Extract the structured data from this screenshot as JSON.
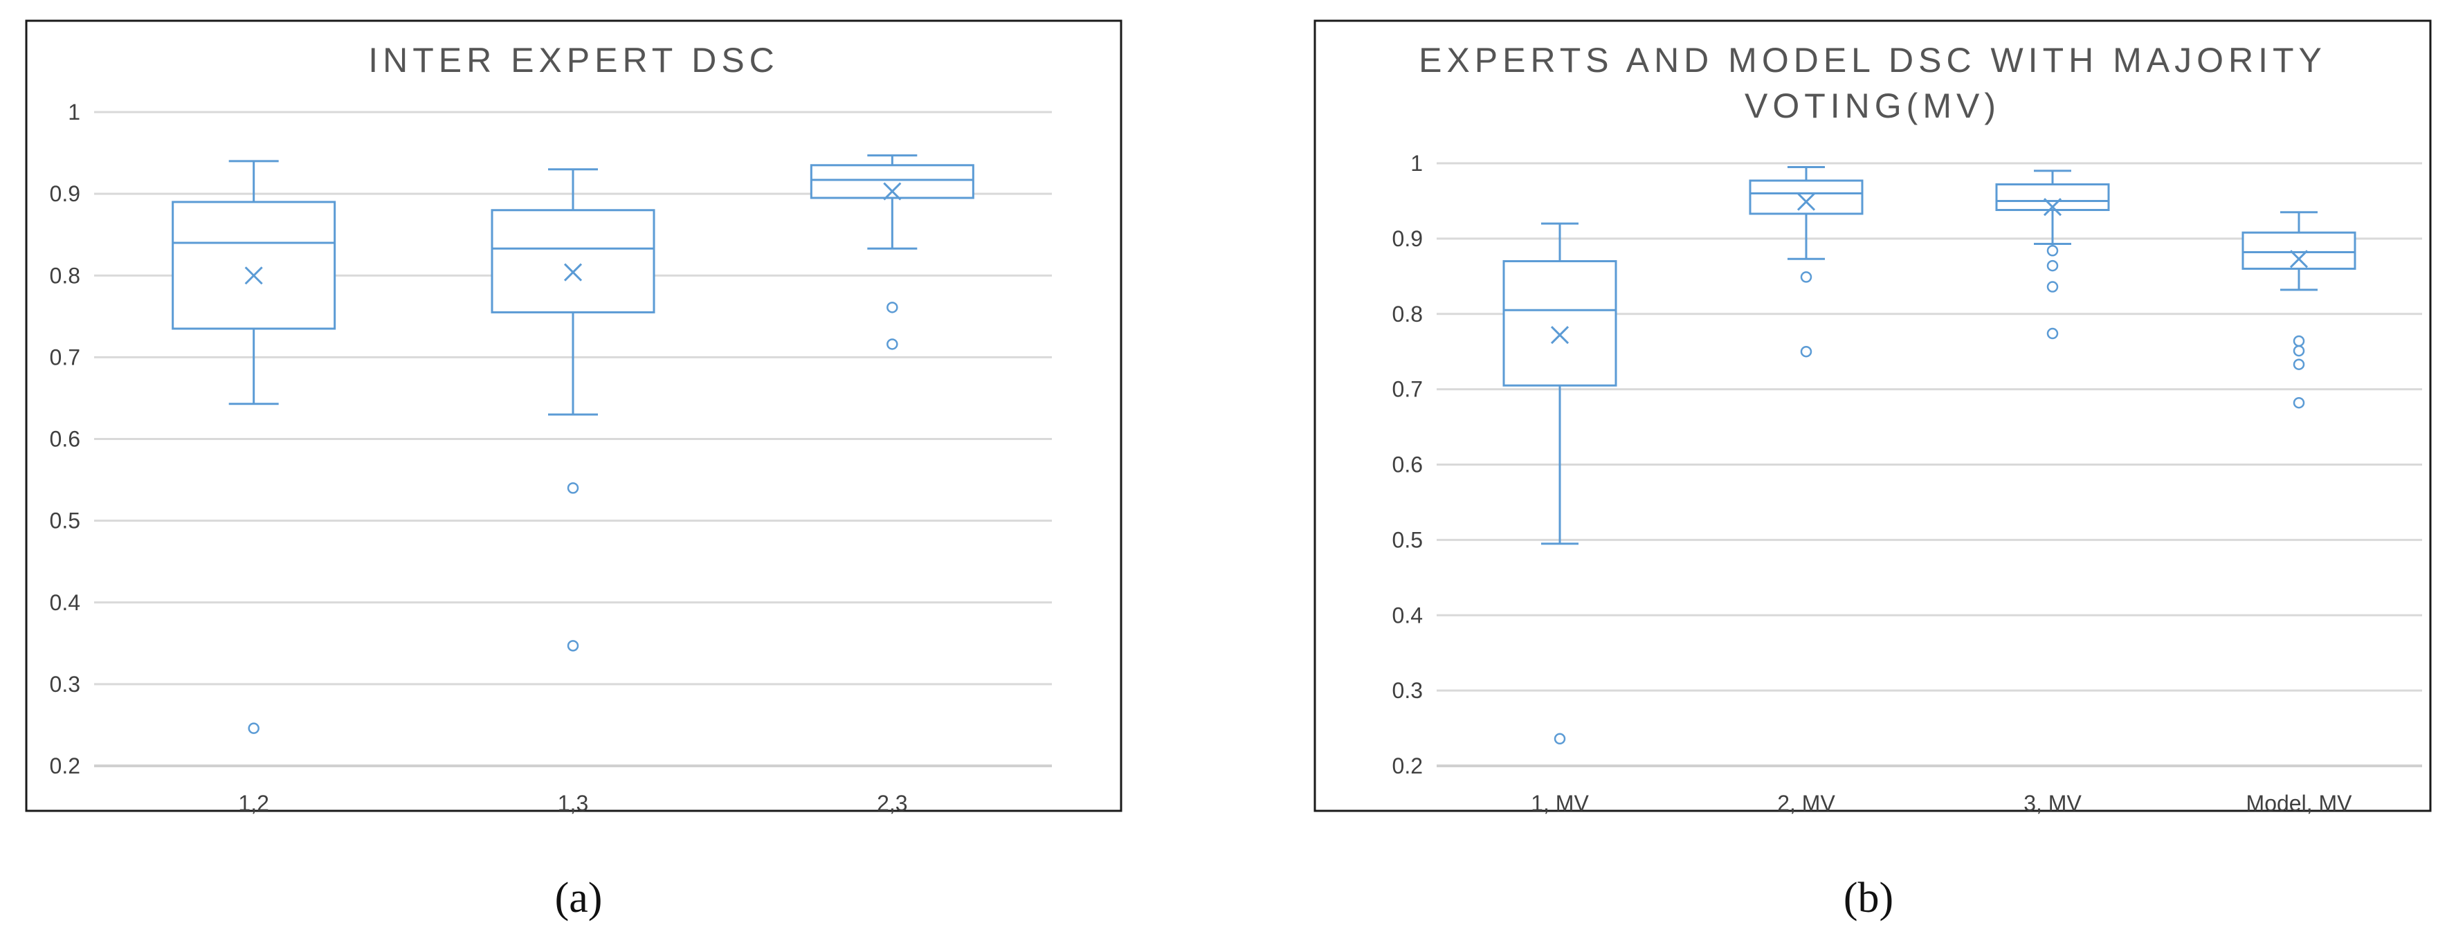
{
  "colors": {
    "series": "#5b9bd5",
    "grid": "#d9d9d9",
    "axis": "#d0d0d0",
    "frame": "#1a1a1a",
    "text": "#404040",
    "title": "#555555"
  },
  "chart_data": [
    {
      "type": "boxplot",
      "panel_label": "(a)",
      "title_lines": [
        "INTER EXPERT DSC"
      ],
      "xlabel": "",
      "ylabel": "",
      "ylim": [
        0.2,
        1.0
      ],
      "yticks": [
        0.2,
        0.3,
        0.4,
        0.5,
        0.6,
        0.7,
        0.8,
        0.9,
        1.0
      ],
      "ytick_labels": [
        "0.2",
        "0.3",
        "0.4",
        "0.5",
        "0.6",
        "0.7",
        "0.8",
        "0.9",
        "1"
      ],
      "grid": true,
      "categories": [
        "1,2",
        "1,3",
        "2,3"
      ],
      "boxes": [
        {
          "min": 0.643,
          "q1": 0.735,
          "median": 0.84,
          "q3": 0.89,
          "max": 0.94,
          "mean": 0.8,
          "outliers": [
            0.246
          ]
        },
        {
          "min": 0.63,
          "q1": 0.755,
          "median": 0.833,
          "q3": 0.88,
          "max": 0.93,
          "mean": 0.804,
          "outliers": [
            0.54,
            0.347
          ]
        },
        {
          "min": 0.833,
          "q1": 0.895,
          "median": 0.917,
          "q3": 0.935,
          "max": 0.947,
          "mean": 0.903,
          "outliers": [
            0.761,
            0.716
          ]
        }
      ]
    },
    {
      "type": "boxplot",
      "panel_label": "(b)",
      "title_lines": [
        "EXPERTS AND MODEL DSC WITH MAJORITY",
        "VOTING(MV)"
      ],
      "xlabel": "",
      "ylabel": "",
      "ylim": [
        0.2,
        1.0
      ],
      "yticks": [
        0.2,
        0.3,
        0.4,
        0.5,
        0.6,
        0.7,
        0.8,
        0.9,
        1.0
      ],
      "ytick_labels": [
        "0.2",
        "0.3",
        "0.4",
        "0.5",
        "0.6",
        "0.7",
        "0.8",
        "0.9",
        "1"
      ],
      "grid": true,
      "categories": [
        "1, MV",
        "2, MV",
        "3, MV",
        "Model, MV"
      ],
      "boxes": [
        {
          "min": 0.495,
          "q1": 0.705,
          "median": 0.805,
          "q3": 0.87,
          "max": 0.92,
          "mean": 0.772,
          "outliers": [
            0.236
          ]
        },
        {
          "min": 0.873,
          "q1": 0.933,
          "median": 0.96,
          "q3": 0.977,
          "max": 0.995,
          "mean": 0.949,
          "outliers": [
            0.849,
            0.75
          ]
        },
        {
          "min": 0.893,
          "q1": 0.938,
          "median": 0.95,
          "q3": 0.972,
          "max": 0.99,
          "mean": 0.942,
          "outliers": [
            0.884,
            0.864,
            0.836,
            0.774
          ]
        },
        {
          "min": 0.832,
          "q1": 0.86,
          "median": 0.882,
          "q3": 0.908,
          "max": 0.935,
          "mean": 0.873,
          "outliers": [
            0.764,
            0.751,
            0.733,
            0.682
          ]
        }
      ]
    }
  ]
}
